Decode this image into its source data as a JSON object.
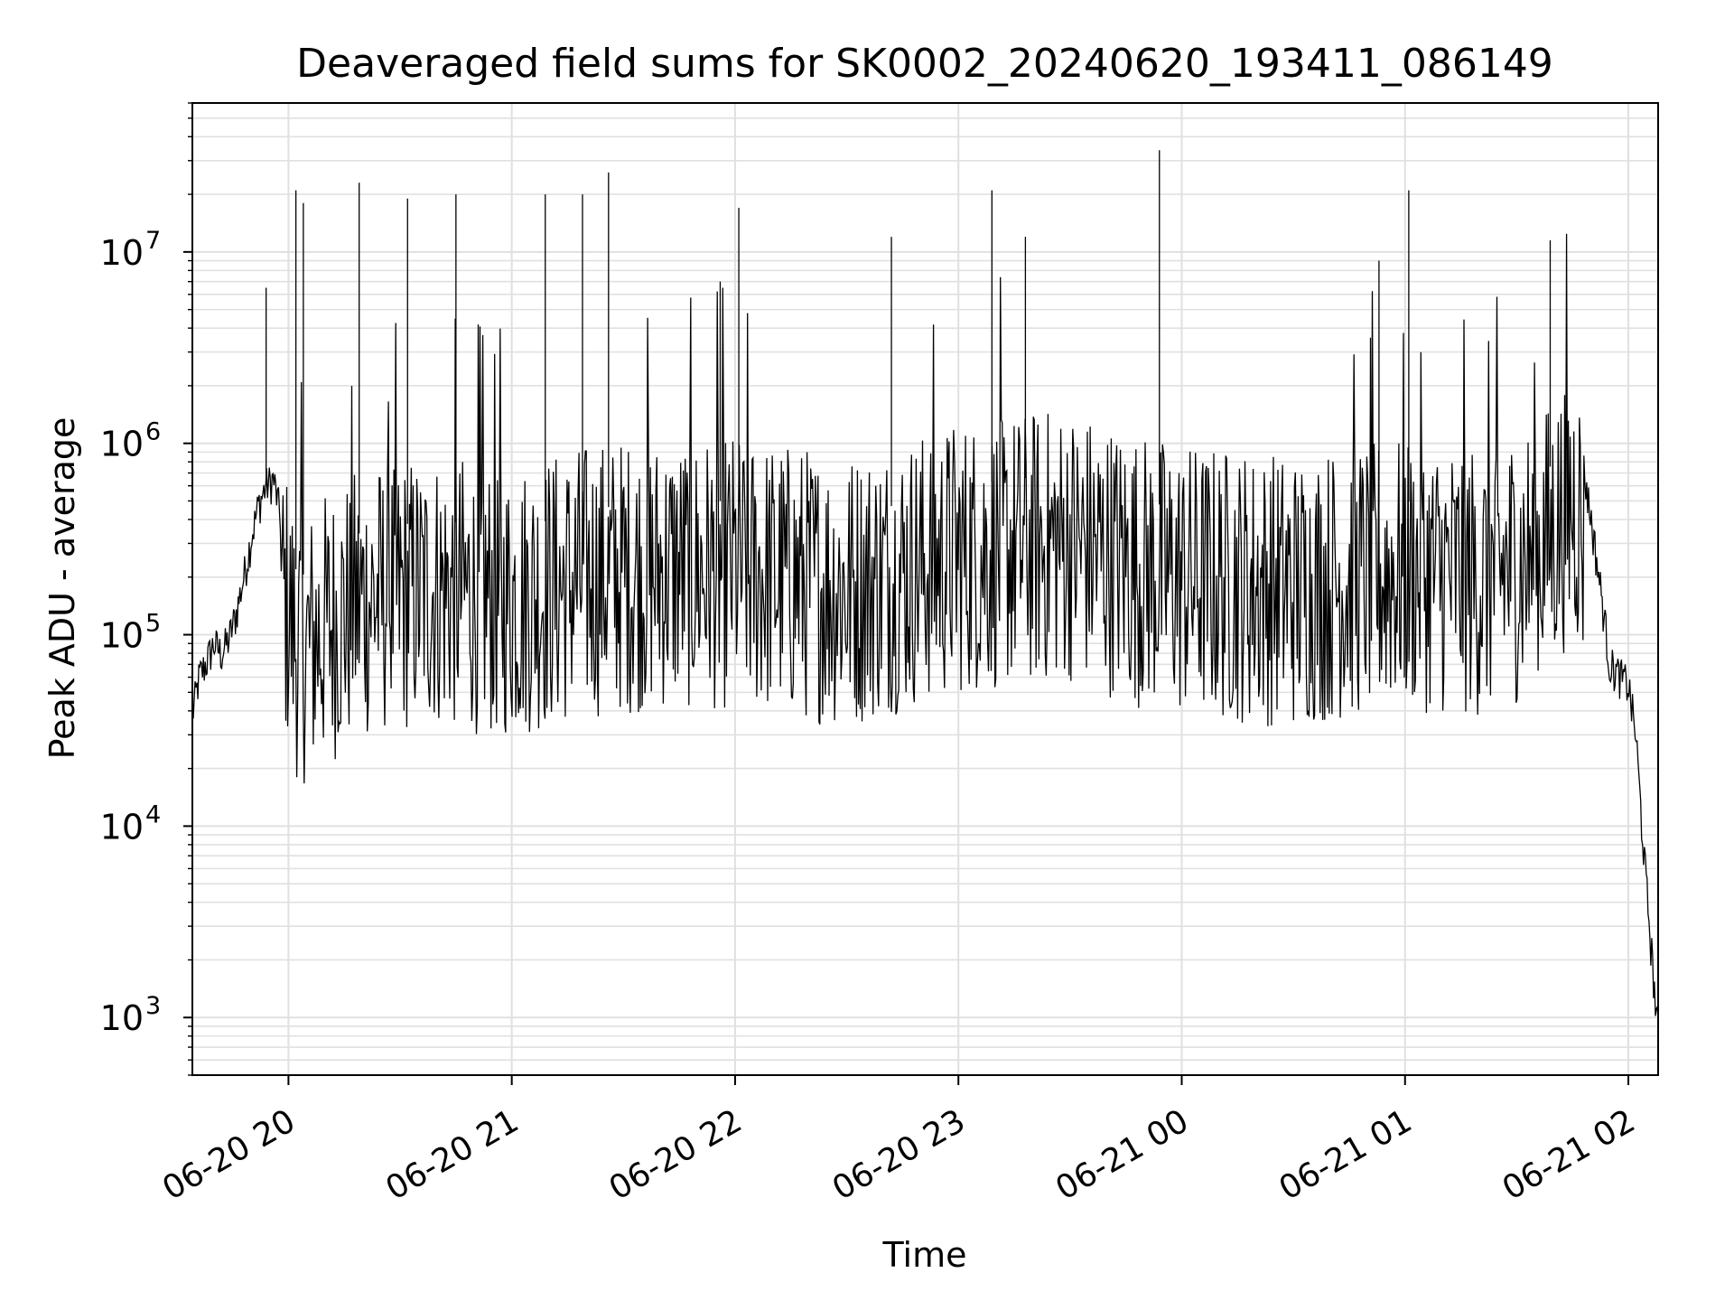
{
  "chart_data": {
    "type": "line",
    "title": "Deaveraged field sums for SK0002_20240620_193411_086149",
    "xlabel": "Time",
    "ylabel": "Peak ADU - average",
    "x_axis": {
      "type": "time",
      "range": [
        "2024-06-20 19:34:11",
        "2024-06-21 02:08:00"
      ],
      "ticks": [
        {
          "value": "2024-06-20 20:00",
          "label": "06-20 20"
        },
        {
          "value": "2024-06-20 21:00",
          "label": "06-20 21"
        },
        {
          "value": "2024-06-20 22:00",
          "label": "06-20 22"
        },
        {
          "value": "2024-06-20 23:00",
          "label": "06-20 23"
        },
        {
          "value": "2024-06-21 00:00",
          "label": "06-21 00"
        },
        {
          "value": "2024-06-21 01:00",
          "label": "06-21 01"
        },
        {
          "value": "2024-06-21 02:00",
          "label": "06-21 02"
        }
      ],
      "tick_label_rotation": "30 degrees"
    },
    "y_axis": {
      "scale": "log",
      "ylim": [
        500,
        60000000
      ],
      "ticks": [
        {
          "value": 1000,
          "base": "10",
          "exp": "3"
        },
        {
          "value": 10000,
          "base": "10",
          "exp": "4"
        },
        {
          "value": 100000,
          "base": "10",
          "exp": "5"
        },
        {
          "value": 1000000,
          "base": "10",
          "exp": "6"
        },
        {
          "value": 10000000,
          "base": "10",
          "exp": "7"
        }
      ]
    },
    "grid": true,
    "line_color": "#000000",
    "grid_color": "#e0e0e0",
    "series": [
      {
        "values": [
          [
            "2024-06-20 19:34:11",
            38000
          ],
          [
            "2024-06-20 19:36",
            60000
          ],
          [
            "2024-06-20 19:38",
            72000
          ],
          [
            "2024-06-20 19:40",
            90000
          ],
          [
            "2024-06-20 19:42",
            80000
          ],
          [
            "2024-06-20 19:44",
            95000
          ],
          [
            "2024-06-20 19:46",
            130000
          ],
          [
            "2024-06-20 19:48",
            200000
          ],
          [
            "2024-06-20 19:50",
            320000
          ],
          [
            "2024-06-20 19:52",
            480000
          ],
          [
            "2024-06-20 19:54",
            600000
          ],
          [
            "2024-06-20 19:56",
            650000
          ],
          [
            "2024-06-20 19:58",
            400000
          ],
          [
            "2024-06-20 20:00",
            300000
          ],
          [
            "2024-06-20 20:02",
            220000
          ],
          [
            "2024-06-20 20:05",
            200000
          ],
          [
            "2024-06-20 20:10",
            250000
          ],
          [
            "2024-06-20 20:20",
            350000
          ],
          [
            "2024-06-20 20:40",
            400000
          ],
          [
            "2024-06-20 21:00",
            350000
          ],
          [
            "2024-06-20 21:20",
            450000
          ],
          [
            "2024-06-20 21:40",
            500000
          ],
          [
            "2024-06-20 22:00",
            500000
          ],
          [
            "2024-06-20 22:30",
            400000
          ],
          [
            "2024-06-20 23:00",
            600000
          ],
          [
            "2024-06-20 23:30",
            700000
          ],
          [
            "2024-06-20 23:50",
            500000
          ],
          [
            "2024-06-21 00:00",
            450000
          ],
          [
            "2024-06-21 00:30",
            400000
          ],
          [
            "2024-06-21 01:00",
            500000
          ],
          [
            "2024-06-21 01:20",
            450000
          ],
          [
            "2024-06-21 01:35",
            600000
          ],
          [
            "2024-06-21 01:40",
            800000
          ],
          [
            "2024-06-21 01:45",
            1200000
          ],
          [
            "2024-06-21 01:47",
            1000000
          ],
          [
            "2024-06-21 01:50",
            400000
          ],
          [
            "2024-06-21 01:53",
            150000
          ],
          [
            "2024-06-21 01:55",
            70000
          ],
          [
            "2024-06-21 01:58",
            60000
          ],
          [
            "2024-06-21 02:00",
            55000
          ],
          [
            "2024-06-21 02:02",
            30000
          ],
          [
            "2024-06-21 02:04",
            8000
          ],
          [
            "2024-06-21 02:06",
            2500
          ],
          [
            "2024-06-21 02:08",
            800
          ]
        ]
      }
    ],
    "spikes": [
      [
        "2024-06-20 19:54",
        6500000
      ],
      [
        "2024-06-20 20:02",
        21000000
      ],
      [
        "2024-06-20 20:04",
        18000000
      ],
      [
        "2024-06-20 20:19",
        23000000
      ],
      [
        "2024-06-20 20:32",
        19000000
      ],
      [
        "2024-06-20 20:45",
        20000000
      ],
      [
        "2024-06-20 21:09",
        20000000
      ],
      [
        "2024-06-20 21:19",
        20000000
      ],
      [
        "2024-06-20 21:26",
        26000000
      ],
      [
        "2024-06-20 21:56",
        7000000
      ],
      [
        "2024-06-20 22:01",
        17000000
      ],
      [
        "2024-06-20 22:42",
        12000000
      ],
      [
        "2024-06-20 23:09",
        21000000
      ],
      [
        "2024-06-20 23:18",
        12000000
      ],
      [
        "2024-06-20 23:54",
        34000000
      ],
      [
        "2024-06-21 00:53",
        9000000
      ],
      [
        "2024-06-21 01:01",
        21000000
      ],
      [
        "2024-06-21 01:39",
        11500000
      ]
    ]
  }
}
